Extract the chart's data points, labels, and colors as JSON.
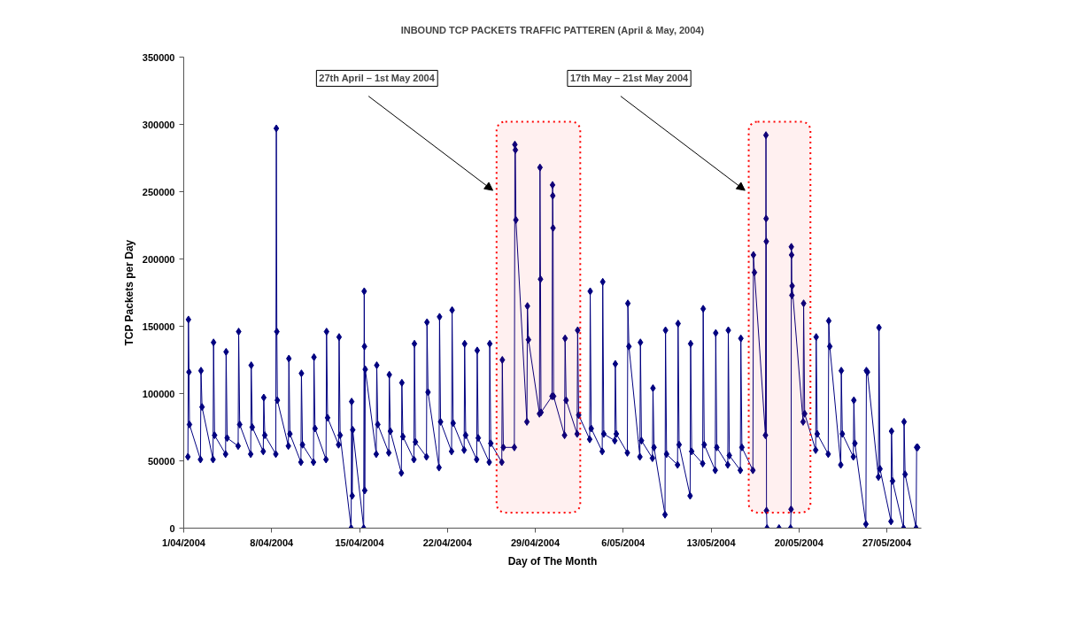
{
  "chart_data": {
    "type": "line",
    "title": "INBOUND TCP PACKETS TRAFFIC PATTEREN (April & May, 2004)",
    "xlabel": "Day of The Month",
    "ylabel": "TCP Packets per Day",
    "xlim": [
      "2004-04-01",
      "2004-05-29T18:00"
    ],
    "ylim": [
      0,
      350000
    ],
    "xticks": [
      {
        "value": "2004-04-01",
        "label": "1/04/2004"
      },
      {
        "value": "2004-04-08",
        "label": "8/04/2004"
      },
      {
        "value": "2004-04-15",
        "label": "15/04/2004"
      },
      {
        "value": "2004-04-22",
        "label": "22/04/2004"
      },
      {
        "value": "2004-04-29",
        "label": "29/04/2004"
      },
      {
        "value": "2004-05-06",
        "label": "6/05/2004"
      },
      {
        "value": "2004-05-13",
        "label": "13/05/2004"
      },
      {
        "value": "2004-05-20",
        "label": "20/05/2004"
      },
      {
        "value": "2004-05-27",
        "label": "27/05/2004"
      }
    ],
    "yticks": [
      0,
      50000,
      100000,
      150000,
      200000,
      250000,
      300000,
      350000
    ],
    "grid": false,
    "marker": "diamond",
    "line_style": "solid",
    "bands": [
      {
        "axis": "x",
        "from": "2004-04-25T22:00",
        "to": "2004-05-02T14:00",
        "label": "27th April – 1st May 2004",
        "color": "#ff0000"
      },
      {
        "axis": "x",
        "from": "2004-05-16T00:00",
        "to": "2004-05-20T22:00",
        "label": "17th May – 21st May 2004",
        "color": "#ff0000"
      }
    ],
    "series": [
      {
        "color": "#000080",
        "x": [
          "2004-04-01T08:00",
          "2004-04-01T09:00",
          "2004-04-01T10:00",
          "2004-04-01T11:00",
          "2004-04-02T08:00",
          "2004-04-02T09:00",
          "2004-04-02T11:00",
          "2004-04-03T08:00",
          "2004-04-03T09:00",
          "2004-04-03T11:00",
          "2004-04-04T08:00",
          "2004-04-04T09:00",
          "2004-04-04T11:00",
          "2004-04-05T08:00",
          "2004-04-05T09:00",
          "2004-04-05T11:00",
          "2004-04-06T08:00",
          "2004-04-06T09:00",
          "2004-04-06T11:00",
          "2004-04-07T08:00",
          "2004-04-07T09:00",
          "2004-04-07T11:00",
          "2004-04-08T08:00",
          "2004-04-08T09:00",
          "2004-04-08T10:00",
          "2004-04-08T11:00",
          "2004-04-09T08:00",
          "2004-04-09T09:00",
          "2004-04-09T11:00",
          "2004-04-10T08:00",
          "2004-04-10T09:00",
          "2004-04-10T11:00",
          "2004-04-11T08:00",
          "2004-04-11T09:00",
          "2004-04-11T11:00",
          "2004-04-12T08:00",
          "2004-04-12T09:00",
          "2004-04-12T11:00",
          "2004-04-13T08:00",
          "2004-04-13T09:00",
          "2004-04-13T11:00",
          "2004-04-14T08:00",
          "2004-04-14T09:00",
          "2004-04-14T10:00",
          "2004-04-14T11:00",
          "2004-04-15T08:00",
          "2004-04-15T09:00",
          "2004-04-15T09:30",
          "2004-04-15T10:00",
          "2004-04-15T11:00",
          "2004-04-16T08:00",
          "2004-04-16T09:00",
          "2004-04-16T11:00",
          "2004-04-17T08:00",
          "2004-04-17T09:00",
          "2004-04-17T11:00",
          "2004-04-18T08:00",
          "2004-04-18T09:00",
          "2004-04-18T11:00",
          "2004-04-19T08:00",
          "2004-04-19T09:00",
          "2004-04-19T11:00",
          "2004-04-20T08:00",
          "2004-04-20T09:00",
          "2004-04-20T11:00",
          "2004-04-21T08:00",
          "2004-04-21T09:00",
          "2004-04-21T11:00",
          "2004-04-22T08:00",
          "2004-04-22T09:00",
          "2004-04-22T11:00",
          "2004-04-23T08:00",
          "2004-04-23T09:00",
          "2004-04-23T11:00",
          "2004-04-24T08:00",
          "2004-04-24T09:00",
          "2004-04-24T11:00",
          "2004-04-25T08:00",
          "2004-04-25T09:00",
          "2004-04-25T11:00",
          "2004-04-26T08:00",
          "2004-04-26T09:00",
          "2004-04-26T11:00",
          "2004-04-27T08:00",
          "2004-04-27T09:00",
          "2004-04-27T10:00",
          "2004-04-27T11:00",
          "2004-04-28T08:00",
          "2004-04-28T09:00",
          "2004-04-28T11:00",
          "2004-04-29T08:00",
          "2004-04-29T09:00",
          "2004-04-29T10:00",
          "2004-04-29T11:00",
          "2004-04-30T08:00",
          "2004-04-30T09:00",
          "2004-04-30T09:30",
          "2004-04-30T10:00",
          "2004-04-30T11:00",
          "2004-05-01T08:00",
          "2004-05-01T09:00",
          "2004-05-01T11:00",
          "2004-05-02T08:00",
          "2004-05-02T09:00",
          "2004-05-02T11:00",
          "2004-05-03T08:00",
          "2004-05-03T09:00",
          "2004-05-03T11:00",
          "2004-05-04T08:00",
          "2004-05-04T09:00",
          "2004-05-04T11:00",
          "2004-05-05T08:00",
          "2004-05-05T09:00",
          "2004-05-05T11:00",
          "2004-05-06T08:00",
          "2004-05-06T09:00",
          "2004-05-06T11:00",
          "2004-05-07T08:00",
          "2004-05-07T09:00",
          "2004-05-07T11:00",
          "2004-05-08T08:00",
          "2004-05-08T09:00",
          "2004-05-08T11:00",
          "2004-05-09T08:00",
          "2004-05-09T09:00",
          "2004-05-09T11:00",
          "2004-05-10T08:00",
          "2004-05-10T09:00",
          "2004-05-10T11:00",
          "2004-05-11T08:00",
          "2004-05-11T09:00",
          "2004-05-11T11:00",
          "2004-05-12T08:00",
          "2004-05-12T09:00",
          "2004-05-12T11:00",
          "2004-05-13T08:00",
          "2004-05-13T09:00",
          "2004-05-13T11:00",
          "2004-05-14T08:00",
          "2004-05-14T09:00",
          "2004-05-14T11:00",
          "2004-05-15T08:00",
          "2004-05-15T09:00",
          "2004-05-15T11:00",
          "2004-05-16T08:00",
          "2004-05-16T09:00",
          "2004-05-16T11:00",
          "2004-05-17T08:00",
          "2004-05-17T09:00",
          "2004-05-17T09:20",
          "2004-05-17T09:40",
          "2004-05-17T10:00",
          "2004-05-17T11:00",
          "2004-05-18T10:00",
          "2004-05-19T08:00",
          "2004-05-19T09:00",
          "2004-05-19T09:30",
          "2004-05-19T10:00",
          "2004-05-19T10:30",
          "2004-05-19T11:00",
          "2004-05-20T08:00",
          "2004-05-20T09:00",
          "2004-05-20T11:00",
          "2004-05-21T08:00",
          "2004-05-21T09:00",
          "2004-05-21T11:00",
          "2004-05-22T08:00",
          "2004-05-22T09:00",
          "2004-05-22T11:00",
          "2004-05-23T08:00",
          "2004-05-23T09:00",
          "2004-05-23T11:00",
          "2004-05-24T08:00",
          "2004-05-24T09:00",
          "2004-05-24T11:00",
          "2004-05-25T08:00",
          "2004-05-25T09:00",
          "2004-05-25T11:00",
          "2004-05-26T08:00",
          "2004-05-26T09:00",
          "2004-05-26T11:00",
          "2004-05-27T08:00",
          "2004-05-27T09:00",
          "2004-05-27T11:00",
          "2004-05-28T08:00",
          "2004-05-28T09:00",
          "2004-05-28T11:00",
          "2004-05-29T08:00",
          "2004-05-29T09:00",
          "2004-05-29T11:00"
        ],
        "values": [
          53000,
          155000,
          116000,
          77000,
          51000,
          117000,
          90000,
          51000,
          138000,
          69000,
          55000,
          131000,
          67000,
          61000,
          146000,
          77000,
          55000,
          121000,
          75000,
          57000,
          97000,
          69000,
          55000,
          297000,
          146000,
          95000,
          61000,
          126000,
          70000,
          49000,
          115000,
          62000,
          49000,
          127000,
          74000,
          51000,
          146000,
          82000,
          62000,
          142000,
          69000,
          0,
          94000,
          24000,
          73000,
          0,
          176000,
          135000,
          28000,
          118000,
          55000,
          121000,
          77000,
          56000,
          114000,
          72000,
          41000,
          108000,
          68000,
          51000,
          137000,
          64000,
          53000,
          153000,
          101000,
          45000,
          157000,
          79000,
          57000,
          162000,
          78000,
          58000,
          137000,
          69000,
          51000,
          132000,
          67000,
          49000,
          137000,
          63000,
          49000,
          125000,
          60000,
          60000,
          285000,
          281000,
          229000,
          79000,
          165000,
          140000,
          85000,
          268000,
          185000,
          86000,
          98000,
          255000,
          247000,
          223000,
          98000,
          69000,
          141000,
          95000,
          70000,
          147000,
          84000,
          66000,
          176000,
          74000,
          57000,
          183000,
          70000,
          65000,
          122000,
          70000,
          56000,
          167000,
          135000,
          53000,
          138000,
          65000,
          52000,
          104000,
          60000,
          10000,
          147000,
          55000,
          47000,
          152000,
          62000,
          24000,
          137000,
          57000,
          48000,
          163000,
          62000,
          43000,
          145000,
          60000,
          47000,
          147000,
          54000,
          43000,
          141000,
          60000,
          43000,
          203000,
          190000,
          69000,
          292000,
          230000,
          213000,
          13000,
          0,
          0,
          0,
          14000,
          209000,
          203000,
          173000,
          180000,
          79000,
          167000,
          85000,
          58000,
          142000,
          70000,
          55000,
          154000,
          135000,
          47000,
          117000,
          70000,
          53000,
          95000,
          63000,
          3000,
          117000,
          116000,
          38000,
          149000,
          44000,
          5000,
          72000,
          35000,
          0,
          79000,
          40000,
          0,
          60000,
          60000
        ]
      }
    ]
  }
}
